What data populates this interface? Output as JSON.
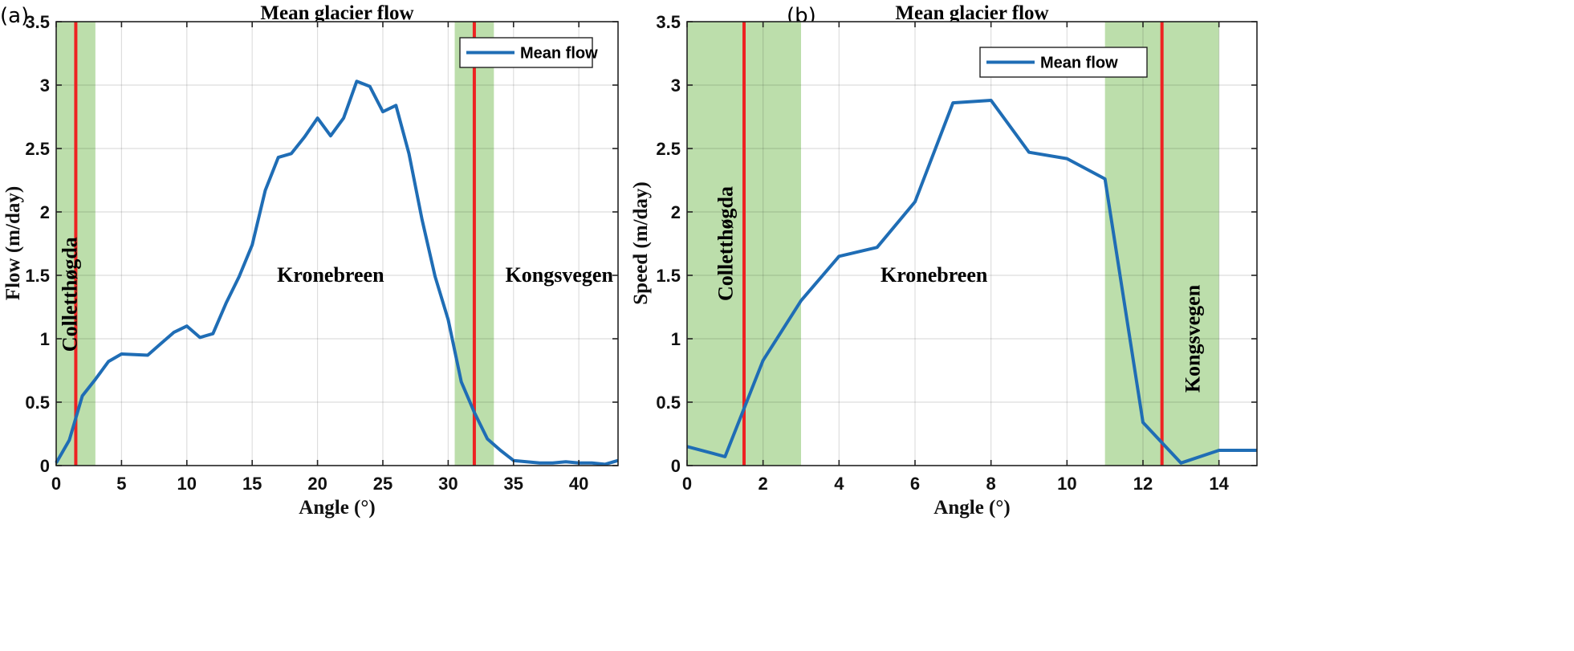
{
  "chart_data": [
    {
      "type": "line",
      "panel": "(a)",
      "title": "Mean glacier flow",
      "xlabel": "Angle (°)",
      "ylabel": "Flow (m/day)",
      "xlim": [
        0,
        43
      ],
      "ylim": [
        0,
        3.5
      ],
      "xticks": [
        0,
        5,
        10,
        15,
        20,
        25,
        30,
        35,
        40
      ],
      "yticks": [
        0,
        0.5,
        1,
        1.5,
        2,
        2.5,
        3,
        3.5
      ],
      "xtick_labels": [
        "0",
        "5",
        "10",
        "15",
        "20",
        "25",
        "30",
        "35",
        "40"
      ],
      "ytick_labels": [
        "0",
        "0.5",
        "1",
        "1.5",
        "2",
        "2.5",
        "3",
        "3.5"
      ],
      "grid": true,
      "legend": {
        "entries": [
          "Mean flow"
        ],
        "placement": "top-right"
      },
      "series": [
        {
          "name": "Mean flow",
          "color": "#1f6db5",
          "x": [
            0,
            1,
            2,
            3,
            4,
            5,
            6,
            7,
            8,
            9,
            10,
            11,
            12,
            13,
            14,
            15,
            16,
            17,
            18,
            19,
            20,
            21,
            22,
            23,
            24,
            25,
            26,
            27,
            28,
            29,
            30,
            31,
            32,
            33,
            34,
            35,
            36,
            37,
            38,
            39,
            40,
            41,
            42,
            43
          ],
          "y": [
            0.02,
            0.2,
            0.55,
            0.68,
            0.82,
            0.88,
            0.875,
            0.87,
            0.96,
            1.05,
            1.1,
            1.01,
            1.04,
            1.28,
            1.49,
            1.74,
            2.17,
            2.43,
            2.46,
            2.59,
            2.74,
            2.6,
            2.74,
            3.03,
            2.99,
            2.79,
            2.84,
            2.46,
            1.94,
            1.49,
            1.15,
            0.66,
            0.42,
            0.21,
            0.12,
            0.04,
            0.03,
            0.02,
            0.02,
            0.03,
            0.02,
            0.02,
            0.01,
            0.04
          ]
        }
      ],
      "shaded_regions": [
        {
          "x0": 0,
          "x1": 3,
          "color": "#bcdeab"
        },
        {
          "x0": 30.5,
          "x1": 33.5,
          "color": "#bcdeab"
        }
      ],
      "vertical_lines": [
        {
          "x": 1.5,
          "color": "#ee2222"
        },
        {
          "x": 32,
          "color": "#ee2222"
        }
      ],
      "annotations": [
        {
          "text": "Colletthøgda",
          "x": 1.0,
          "y": 1.35,
          "rotation": "vertical"
        },
        {
          "text": "Kronebreen",
          "x": 21,
          "y": 1.45,
          "rotation": "horizontal"
        },
        {
          "text": "Kongsvegen",
          "x": 38.5,
          "y": 1.45,
          "rotation": "horizontal"
        }
      ]
    },
    {
      "type": "line",
      "panel": "(b)",
      "title": "Mean glacier flow",
      "xlabel": "Angle (°)",
      "ylabel": "Speed (m/day)",
      "xlim": [
        0,
        15
      ],
      "ylim": [
        0,
        3.5
      ],
      "xticks": [
        0,
        2,
        4,
        6,
        8,
        10,
        12,
        14
      ],
      "yticks": [
        0,
        0.5,
        1,
        1.5,
        2,
        2.5,
        3,
        3.5
      ],
      "xtick_labels": [
        "0",
        "2",
        "4",
        "6",
        "8",
        "10",
        "12",
        "14"
      ],
      "ytick_labels": [
        "0",
        "0.5",
        "1",
        "1.5",
        "2",
        "2.5",
        "3",
        "3.5"
      ],
      "grid": true,
      "legend": {
        "entries": [
          "Mean flow"
        ],
        "placement": "top-right"
      },
      "series": [
        {
          "name": "Mean flow",
          "color": "#1f6db5",
          "x": [
            0,
            1,
            2,
            3,
            4,
            5,
            6,
            7,
            8,
            9,
            10,
            11,
            12,
            13,
            14,
            15
          ],
          "y": [
            0.15,
            0.07,
            0.83,
            1.3,
            1.65,
            1.72,
            2.08,
            2.86,
            2.88,
            2.47,
            2.42,
            2.26,
            0.34,
            0.02,
            0.12,
            0.12
          ]
        }
      ],
      "shaded_regions": [
        {
          "x0": 0,
          "x1": 3,
          "color": "#bcdeab"
        },
        {
          "x0": 11,
          "x1": 14,
          "color": "#bcdeab"
        }
      ],
      "vertical_lines": [
        {
          "x": 1.5,
          "color": "#ee2222"
        },
        {
          "x": 12.5,
          "color": "#ee2222"
        }
      ],
      "annotations": [
        {
          "text": "Colletthøgda",
          "x": 1.0,
          "y": 1.75,
          "rotation": "vertical"
        },
        {
          "text": "Kronebreen",
          "x": 6.5,
          "y": 1.45,
          "rotation": "horizontal"
        },
        {
          "text": "Kongsvegen",
          "x": 13.3,
          "y": 1.0,
          "rotation": "vertical"
        }
      ]
    }
  ]
}
